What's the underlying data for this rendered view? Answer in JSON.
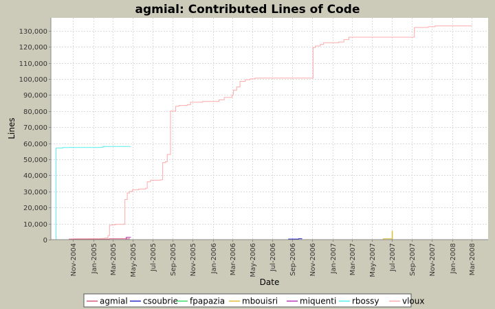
{
  "chart_data": {
    "type": "line",
    "title": "agmial: Contributed Lines of Code",
    "xlabel": "Date",
    "ylabel": "Lines",
    "ylim": [
      0,
      138000
    ],
    "xlim": [
      "2004-08-25",
      "2008-04-20"
    ],
    "grid": true,
    "legend_position": "bottom",
    "y_ticks": [
      {
        "value": 0,
        "label": "0"
      },
      {
        "value": 10000,
        "label": "10,000"
      },
      {
        "value": 20000,
        "label": "20,000"
      },
      {
        "value": 30000,
        "label": "30,000"
      },
      {
        "value": 40000,
        "label": "40,000"
      },
      {
        "value": 50000,
        "label": "50,000"
      },
      {
        "value": 60000,
        "label": "60,000"
      },
      {
        "value": 70000,
        "label": "70,000"
      },
      {
        "value": 80000,
        "label": "80,000"
      },
      {
        "value": 90000,
        "label": "90,000"
      },
      {
        "value": 100000,
        "label": "100,000"
      },
      {
        "value": 110000,
        "label": "110,000"
      },
      {
        "value": 120000,
        "label": "120,000"
      },
      {
        "value": 130000,
        "label": "130,000"
      }
    ],
    "x_ticks": [
      {
        "date": "2004-11-01",
        "label": "Nov-2004"
      },
      {
        "date": "2005-01-01",
        "label": "Jan-2005"
      },
      {
        "date": "2005-03-01",
        "label": "Mar-2005"
      },
      {
        "date": "2005-05-01",
        "label": "May-2005"
      },
      {
        "date": "2005-07-01",
        "label": "Jul-2005"
      },
      {
        "date": "2005-09-01",
        "label": "Sep-2005"
      },
      {
        "date": "2005-11-01",
        "label": "Nov-2005"
      },
      {
        "date": "2006-01-01",
        "label": "Jan-2006"
      },
      {
        "date": "2006-03-01",
        "label": "Mar-2006"
      },
      {
        "date": "2006-05-01",
        "label": "May-2006"
      },
      {
        "date": "2006-07-01",
        "label": "Jul-2006"
      },
      {
        "date": "2006-09-01",
        "label": "Sep-2006"
      },
      {
        "date": "2006-11-01",
        "label": "Nov-2006"
      },
      {
        "date": "2007-01-01",
        "label": "Jan-2007"
      },
      {
        "date": "2007-03-01",
        "label": "Mar-2007"
      },
      {
        "date": "2007-05-01",
        "label": "May-2007"
      },
      {
        "date": "2007-07-01",
        "label": "Jul-2007"
      },
      {
        "date": "2007-09-01",
        "label": "Sep-2007"
      },
      {
        "date": "2007-11-01",
        "label": "Nov-2007"
      },
      {
        "date": "2008-01-01",
        "label": "Jan-2008"
      },
      {
        "date": "2008-03-01",
        "label": "Mar-2008"
      }
    ],
    "series": [
      {
        "name": "agmial",
        "color": "#d65577",
        "points": [
          [
            "2004-09-15",
            0
          ],
          [
            "2004-10-20",
            300
          ],
          [
            "2005-01-20",
            300
          ],
          [
            "2005-02-20",
            500
          ],
          [
            "2005-04-10",
            500
          ],
          [
            "2005-04-22",
            800
          ]
        ]
      },
      {
        "name": "csoubrie",
        "color": "#2424c8",
        "points": [
          [
            "2006-04-20",
            0
          ],
          [
            "2006-08-15",
            0
          ],
          [
            "2006-08-20",
            400
          ],
          [
            "2006-09-20",
            600
          ],
          [
            "2006-09-30",
            700
          ]
        ]
      },
      {
        "name": "fpapazia",
        "color": "#33dd66",
        "points": [
          [
            "2007-06-10",
            0
          ],
          [
            "2007-06-25",
            100
          ]
        ]
      },
      {
        "name": "mbouisri",
        "color": "#ddbb33",
        "points": [
          [
            "2007-06-01",
            0
          ],
          [
            "2007-06-05",
            500
          ],
          [
            "2007-07-02",
            500
          ],
          [
            "2007-07-02",
            5200
          ],
          [
            "2007-07-03",
            0
          ]
        ]
      },
      {
        "name": "miquenti",
        "color": "#bb33bb",
        "points": [
          [
            "2005-03-01",
            0
          ],
          [
            "2005-04-12",
            0
          ],
          [
            "2005-04-12",
            1500
          ],
          [
            "2005-04-25",
            1700
          ]
        ]
      },
      {
        "name": "rbossy",
        "color": "#55eeee",
        "points": [
          [
            "2004-09-09",
            0
          ],
          [
            "2004-09-10",
            57000
          ],
          [
            "2004-09-30",
            57300
          ],
          [
            "2004-10-20",
            57400
          ],
          [
            "2005-01-25",
            57500
          ],
          [
            "2005-02-01",
            58000
          ],
          [
            "2005-04-25",
            58000
          ]
        ]
      },
      {
        "name": "vloux",
        "color": "#ffaaaa",
        "points": [
          [
            "2004-09-15",
            0
          ],
          [
            "2004-10-20",
            300
          ],
          [
            "2004-11-05",
            500
          ],
          [
            "2004-12-20",
            600
          ],
          [
            "2005-01-25",
            700
          ],
          [
            "2005-02-05",
            1000
          ],
          [
            "2005-02-15",
            2500
          ],
          [
            "2005-02-20",
            9000
          ],
          [
            "2005-03-01",
            9200
          ],
          [
            "2005-03-10",
            9500
          ],
          [
            "2005-04-05",
            9800
          ],
          [
            "2005-04-08",
            25000
          ],
          [
            "2005-04-15",
            29000
          ],
          [
            "2005-04-22",
            30000
          ],
          [
            "2005-05-01",
            31000
          ],
          [
            "2005-05-20",
            31500
          ],
          [
            "2005-06-10",
            32000
          ],
          [
            "2005-06-15",
            36000
          ],
          [
            "2005-06-25",
            37000
          ],
          [
            "2005-07-25",
            37200
          ],
          [
            "2005-08-01",
            48000
          ],
          [
            "2005-08-10",
            48500
          ],
          [
            "2005-08-15",
            53000
          ],
          [
            "2005-08-25",
            80000
          ],
          [
            "2005-09-10",
            83000
          ],
          [
            "2005-09-20",
            83500
          ],
          [
            "2005-10-15",
            84000
          ],
          [
            "2005-10-25",
            85500
          ],
          [
            "2005-12-01",
            86000
          ],
          [
            "2006-01-15",
            86000
          ],
          [
            "2006-01-20",
            87000
          ],
          [
            "2006-02-05",
            88500
          ],
          [
            "2006-03-01",
            90000
          ],
          [
            "2006-03-05",
            93000
          ],
          [
            "2006-03-15",
            95000
          ],
          [
            "2006-03-25",
            98500
          ],
          [
            "2006-04-10",
            99500
          ],
          [
            "2006-04-25",
            100000
          ],
          [
            "2006-05-10",
            100500
          ],
          [
            "2006-11-01",
            100500
          ],
          [
            "2006-11-03",
            119500
          ],
          [
            "2006-11-10",
            120500
          ],
          [
            "2006-11-25",
            121500
          ],
          [
            "2006-12-05",
            122500
          ],
          [
            "2007-01-20",
            123000
          ],
          [
            "2007-02-05",
            124500
          ],
          [
            "2007-02-20",
            126000
          ],
          [
            "2007-09-05",
            126000
          ],
          [
            "2007-09-08",
            132000
          ],
          [
            "2007-10-20",
            132500
          ],
          [
            "2007-11-10",
            133000
          ],
          [
            "2008-03-01",
            133000
          ]
        ]
      }
    ]
  }
}
